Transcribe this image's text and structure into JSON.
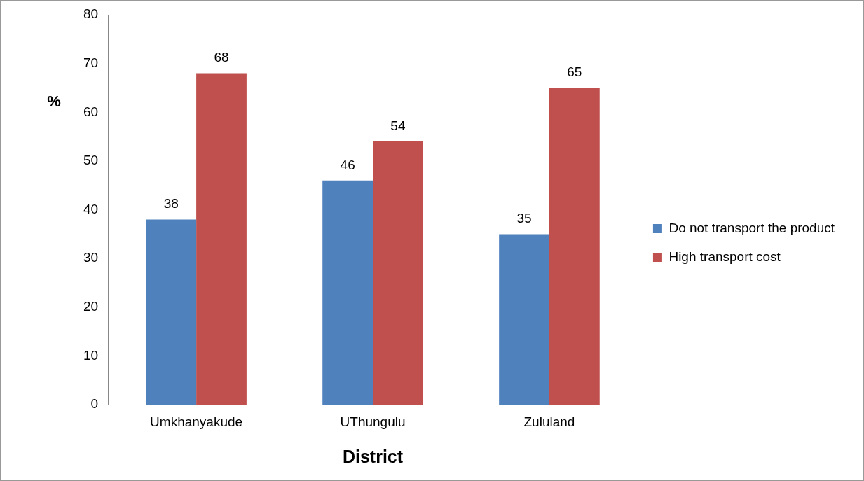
{
  "chart_data": {
    "type": "bar",
    "xlabel": "District",
    "ylabel": "%",
    "categories": [
      "Umkhanyakude",
      "UThungulu",
      "Zululand"
    ],
    "series": [
      {
        "name": "Do not transport the product",
        "color": "#4f81bd",
        "values": [
          38,
          46,
          35
        ]
      },
      {
        "name": "High transport cost",
        "color": "#c0504d",
        "values": [
          68,
          54,
          65
        ]
      }
    ],
    "ylim": [
      0,
      80
    ],
    "yticks": [
      0,
      10,
      20,
      30,
      40,
      50,
      60,
      70,
      80
    ],
    "grid": false,
    "legend": "right",
    "data_labels": true
  }
}
